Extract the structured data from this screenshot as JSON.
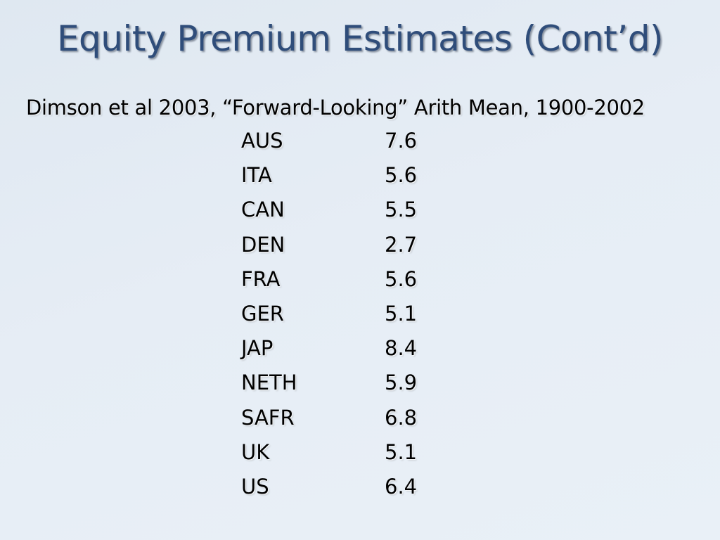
{
  "slide": {
    "title": "Equity Premium Estimates (Cont’d)",
    "subtitle": "Dimson et al 2003, “Forward-Looking” Arith Mean, 1900-2002",
    "rows": [
      {
        "country": "AUS",
        "value": "7.6"
      },
      {
        "country": "ITA",
        "value": "5.6"
      },
      {
        "country": "CAN",
        "value": "5.5"
      },
      {
        "country": "DEN",
        "value": "2.7"
      },
      {
        "country": "FRA",
        "value": "5.6"
      },
      {
        "country": "GER",
        "value": "5.1"
      },
      {
        "country": "JAP",
        "value": "8.4"
      },
      {
        "country": "NETH",
        "value": "5.9"
      },
      {
        "country": "SAFR",
        "value": "6.8"
      },
      {
        "country": "UK",
        "value": "5.1"
      },
      {
        "country": "US",
        "value": "6.4"
      }
    ]
  },
  "colors": {
    "title": "#2f4d7a",
    "background": "#e3ebf4",
    "text": "#000000"
  }
}
